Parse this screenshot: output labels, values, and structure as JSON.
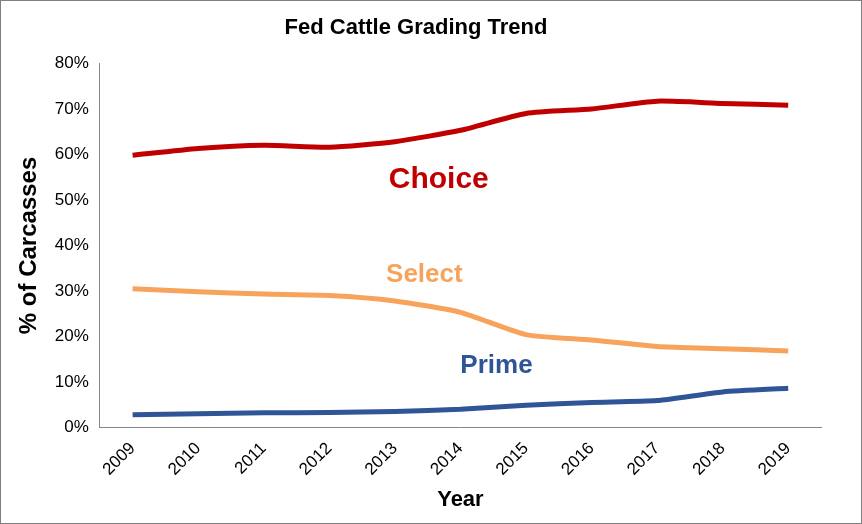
{
  "chart_data": {
    "type": "line",
    "title": "Fed Cattle Grading Trend",
    "x_label": "Year",
    "y_label": "% of Carcasses",
    "categories": [
      "2009",
      "2010",
      "2011",
      "2012",
      "2013",
      "2014",
      "2015",
      "2016",
      "2017",
      "2018",
      "2019"
    ],
    "series": [
      {
        "name": "Choice",
        "color": "#c00000",
        "values": [
          59.8,
          61.3,
          62.0,
          61.6,
          62.8,
          65.3,
          69.0,
          70.0,
          71.7,
          71.2,
          70.8
        ]
      },
      {
        "name": "Select",
        "color": "#f7a35c",
        "values": [
          30.5,
          29.8,
          29.3,
          29.0,
          27.8,
          25.3,
          20.4,
          19.2,
          17.8,
          17.3,
          16.8
        ]
      },
      {
        "name": "Prime",
        "color": "#2f5597",
        "values": [
          2.8,
          3.0,
          3.2,
          3.3,
          3.5,
          4.0,
          4.9,
          5.5,
          5.9,
          7.8,
          8.6
        ]
      }
    ],
    "ylim": [
      0,
      80
    ],
    "yticks": [
      {
        "value": 0,
        "label": "0%"
      },
      {
        "value": 10,
        "label": "10%"
      },
      {
        "value": 20,
        "label": "20%"
      },
      {
        "value": 30,
        "label": "30%"
      },
      {
        "value": 40,
        "label": "40%"
      },
      {
        "value": 50,
        "label": "50%"
      },
      {
        "value": 60,
        "label": "60%"
      },
      {
        "value": 70,
        "label": "70%"
      },
      {
        "value": 80,
        "label": "80%"
      }
    ],
    "grid": false
  }
}
